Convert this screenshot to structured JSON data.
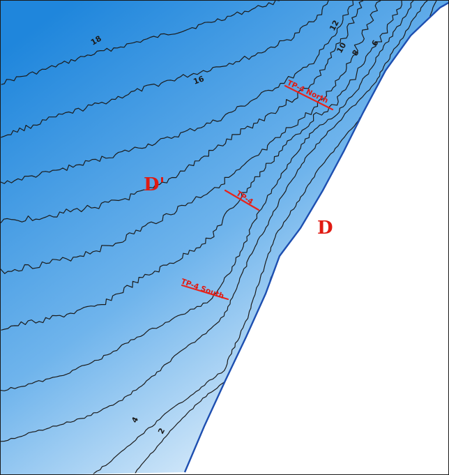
{
  "map": {
    "colors": {
      "deep_water": "#1f86dc",
      "shallow_water": "#e8f3fc",
      "shoreline": "#1e4fb0",
      "transect": "#e8231b",
      "label": "#e01a12",
      "contour": "#1b1b1b"
    },
    "zones": {
      "offshore": "D'",
      "onshore": "D"
    },
    "transects": [
      {
        "id": "north",
        "label": "TP-4 North"
      },
      {
        "id": "center",
        "label": "TP-4"
      },
      {
        "id": "south",
        "label": "TP-4 South"
      }
    ],
    "contour_labels": [
      {
        "id": "c2",
        "text": "2"
      },
      {
        "id": "c4",
        "text": "4"
      },
      {
        "id": "c6",
        "text": "6"
      },
      {
        "id": "c8",
        "text": "8"
      },
      {
        "id": "c10",
        "text": "10"
      },
      {
        "id": "c12",
        "text": "12"
      },
      {
        "id": "c16",
        "text": "16"
      },
      {
        "id": "c18",
        "text": "18"
      }
    ]
  }
}
